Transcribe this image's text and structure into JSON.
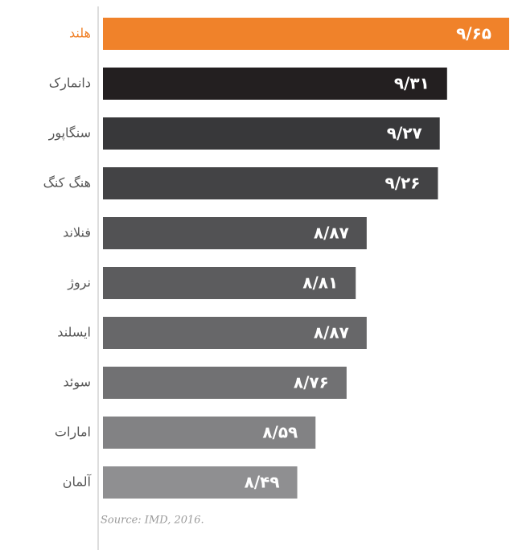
{
  "chart_data": {
    "type": "hbar",
    "categories": [
      "هلند",
      "دانمارک",
      "سنگاپور",
      "هنگ کنگ",
      "فنلاند",
      "نروژ",
      "ایسلند",
      "سوئد",
      "امارات",
      "آلمان"
    ],
    "values": [
      9.65,
      9.31,
      9.27,
      9.26,
      8.87,
      8.81,
      8.87,
      8.76,
      8.59,
      8.49
    ],
    "value_labels": [
      "۹/۶۵",
      "۹/۳۱",
      "۹/۲۷",
      "۹/۲۶",
      "۸/۸۷",
      "۸/۸۱",
      "۸/۸۷",
      "۸/۷۶",
      "۸/۵۹",
      "۸/۴۹"
    ],
    "colors": [
      "#f0822a",
      "#231f20",
      "#38383a",
      "#434345",
      "#525254",
      "#5c5c5e",
      "#676769",
      "#717173",
      "#828284",
      "#8f8f91"
    ],
    "xlim": [
      7.4,
      9.65
    ],
    "source": "Source: IMD, 2016."
  }
}
